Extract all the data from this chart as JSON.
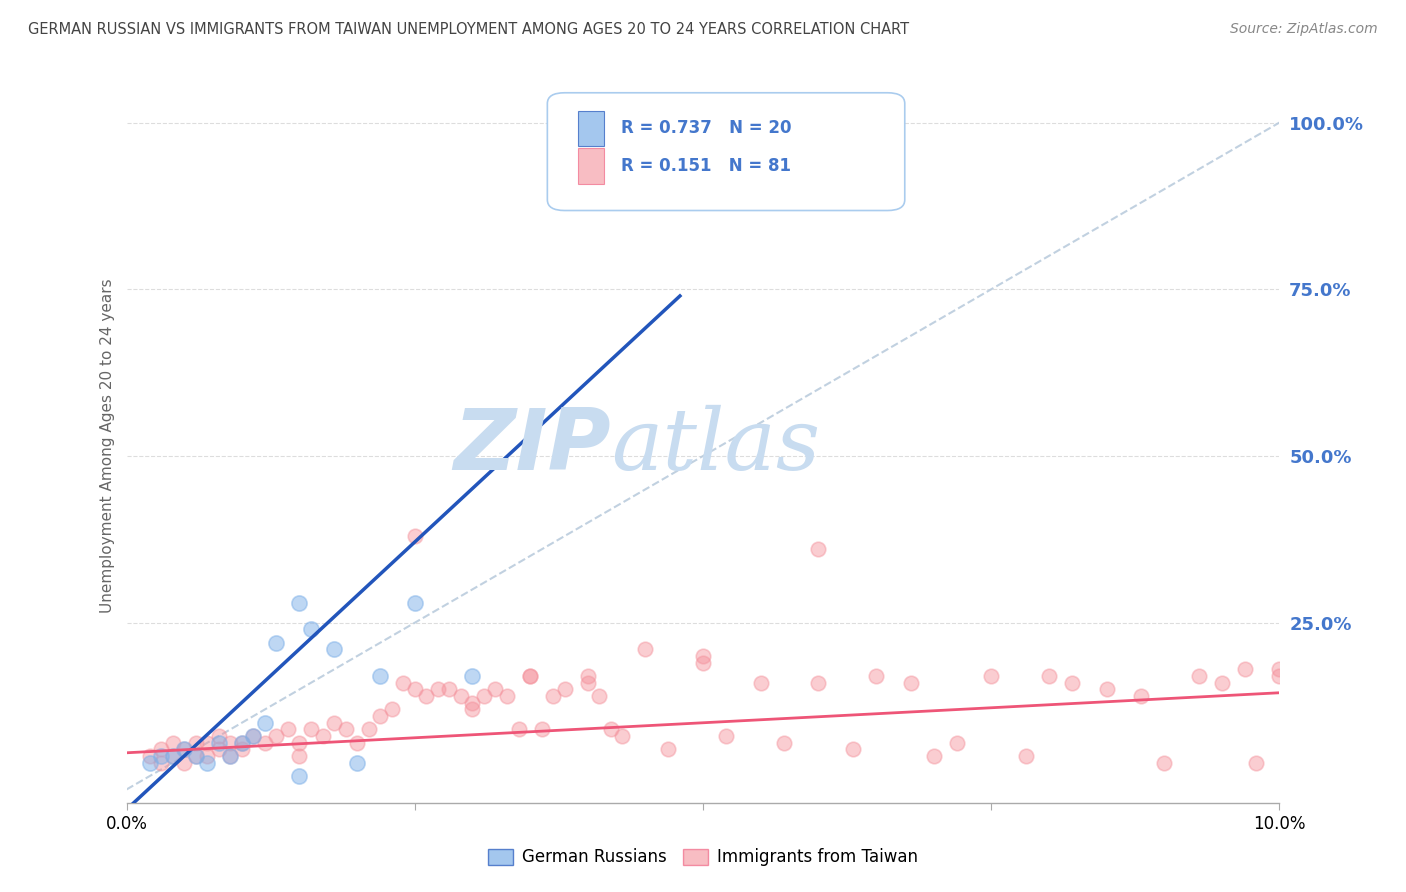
{
  "title": "GERMAN RUSSIAN VS IMMIGRANTS FROM TAIWAN UNEMPLOYMENT AMONG AGES 20 TO 24 YEARS CORRELATION CHART",
  "source": "Source: ZipAtlas.com",
  "ylabel": "Unemployment Among Ages 20 to 24 years",
  "xlim": [
    0.0,
    0.1
  ],
  "ylim": [
    -0.02,
    1.05
  ],
  "ylim_plot": [
    0.0,
    1.05
  ],
  "xticks": [
    0.0,
    0.025,
    0.05,
    0.075,
    0.1
  ],
  "yticks_right": [
    0.25,
    0.5,
    0.75,
    1.0
  ],
  "ytick_labels_right": [
    "25.0%",
    "50.0%",
    "75.0%",
    "100.0%"
  ],
  "legend1_R": "0.737",
  "legend1_N": "20",
  "legend2_R": "0.151",
  "legend2_N": "81",
  "legend_label1": "German Russians",
  "legend_label2": "Immigrants from Taiwan",
  "color_blue": "#7EB0E8",
  "color_pink": "#F4919B",
  "color_trendline_blue": "#2255BB",
  "color_trendline_pink": "#EE5577",
  "color_refline": "#BBCCDD",
  "watermark_zip": "ZIP",
  "watermark_atlas": "atlas",
  "watermark_color": "#C8DCF0",
  "title_color": "#444444",
  "right_axis_color": "#4477CC",
  "grid_color": "#DDDDDD",
  "blue_scatter_x": [
    0.002,
    0.003,
    0.004,
    0.005,
    0.006,
    0.007,
    0.008,
    0.009,
    0.01,
    0.011,
    0.012,
    0.013,
    0.015,
    0.016,
    0.018,
    0.02,
    0.022,
    0.025,
    0.03,
    0.015
  ],
  "blue_scatter_y": [
    0.04,
    0.05,
    0.05,
    0.06,
    0.05,
    0.04,
    0.07,
    0.05,
    0.07,
    0.08,
    0.1,
    0.22,
    0.28,
    0.24,
    0.21,
    0.04,
    0.17,
    0.28,
    0.17,
    0.02
  ],
  "pink_scatter_x": [
    0.002,
    0.003,
    0.003,
    0.004,
    0.004,
    0.005,
    0.005,
    0.006,
    0.006,
    0.007,
    0.007,
    0.008,
    0.008,
    0.009,
    0.009,
    0.01,
    0.01,
    0.011,
    0.012,
    0.013,
    0.014,
    0.015,
    0.015,
    0.016,
    0.017,
    0.018,
    0.019,
    0.02,
    0.021,
    0.022,
    0.023,
    0.024,
    0.025,
    0.026,
    0.027,
    0.028,
    0.029,
    0.03,
    0.031,
    0.032,
    0.033,
    0.034,
    0.035,
    0.036,
    0.037,
    0.038,
    0.04,
    0.041,
    0.042,
    0.043,
    0.045,
    0.047,
    0.05,
    0.052,
    0.055,
    0.057,
    0.06,
    0.063,
    0.065,
    0.068,
    0.07,
    0.072,
    0.075,
    0.078,
    0.08,
    0.082,
    0.085,
    0.088,
    0.09,
    0.093,
    0.095,
    0.097,
    0.098,
    0.1,
    0.1,
    0.035,
    0.04,
    0.03,
    0.025,
    0.05,
    0.06
  ],
  "pink_scatter_y": [
    0.05,
    0.04,
    0.06,
    0.05,
    0.07,
    0.04,
    0.06,
    0.05,
    0.07,
    0.05,
    0.07,
    0.06,
    0.08,
    0.05,
    0.07,
    0.06,
    0.07,
    0.08,
    0.07,
    0.08,
    0.09,
    0.05,
    0.07,
    0.09,
    0.08,
    0.1,
    0.09,
    0.07,
    0.09,
    0.11,
    0.12,
    0.16,
    0.15,
    0.14,
    0.15,
    0.15,
    0.14,
    0.13,
    0.14,
    0.15,
    0.14,
    0.09,
    0.17,
    0.09,
    0.14,
    0.15,
    0.16,
    0.14,
    0.09,
    0.08,
    0.21,
    0.06,
    0.19,
    0.08,
    0.16,
    0.07,
    0.16,
    0.06,
    0.17,
    0.16,
    0.05,
    0.07,
    0.17,
    0.05,
    0.17,
    0.16,
    0.15,
    0.14,
    0.04,
    0.17,
    0.16,
    0.18,
    0.04,
    0.17,
    0.18,
    0.17,
    0.17,
    0.12,
    0.38,
    0.2,
    0.36
  ],
  "blue_trendline_x0": 0.0,
  "blue_trendline_y0": -0.03,
  "blue_trendline_x1": 0.048,
  "blue_trendline_y1": 0.74,
  "pink_trendline_x0": 0.0,
  "pink_trendline_y0": 0.055,
  "pink_trendline_x1": 0.1,
  "pink_trendline_y1": 0.145
}
